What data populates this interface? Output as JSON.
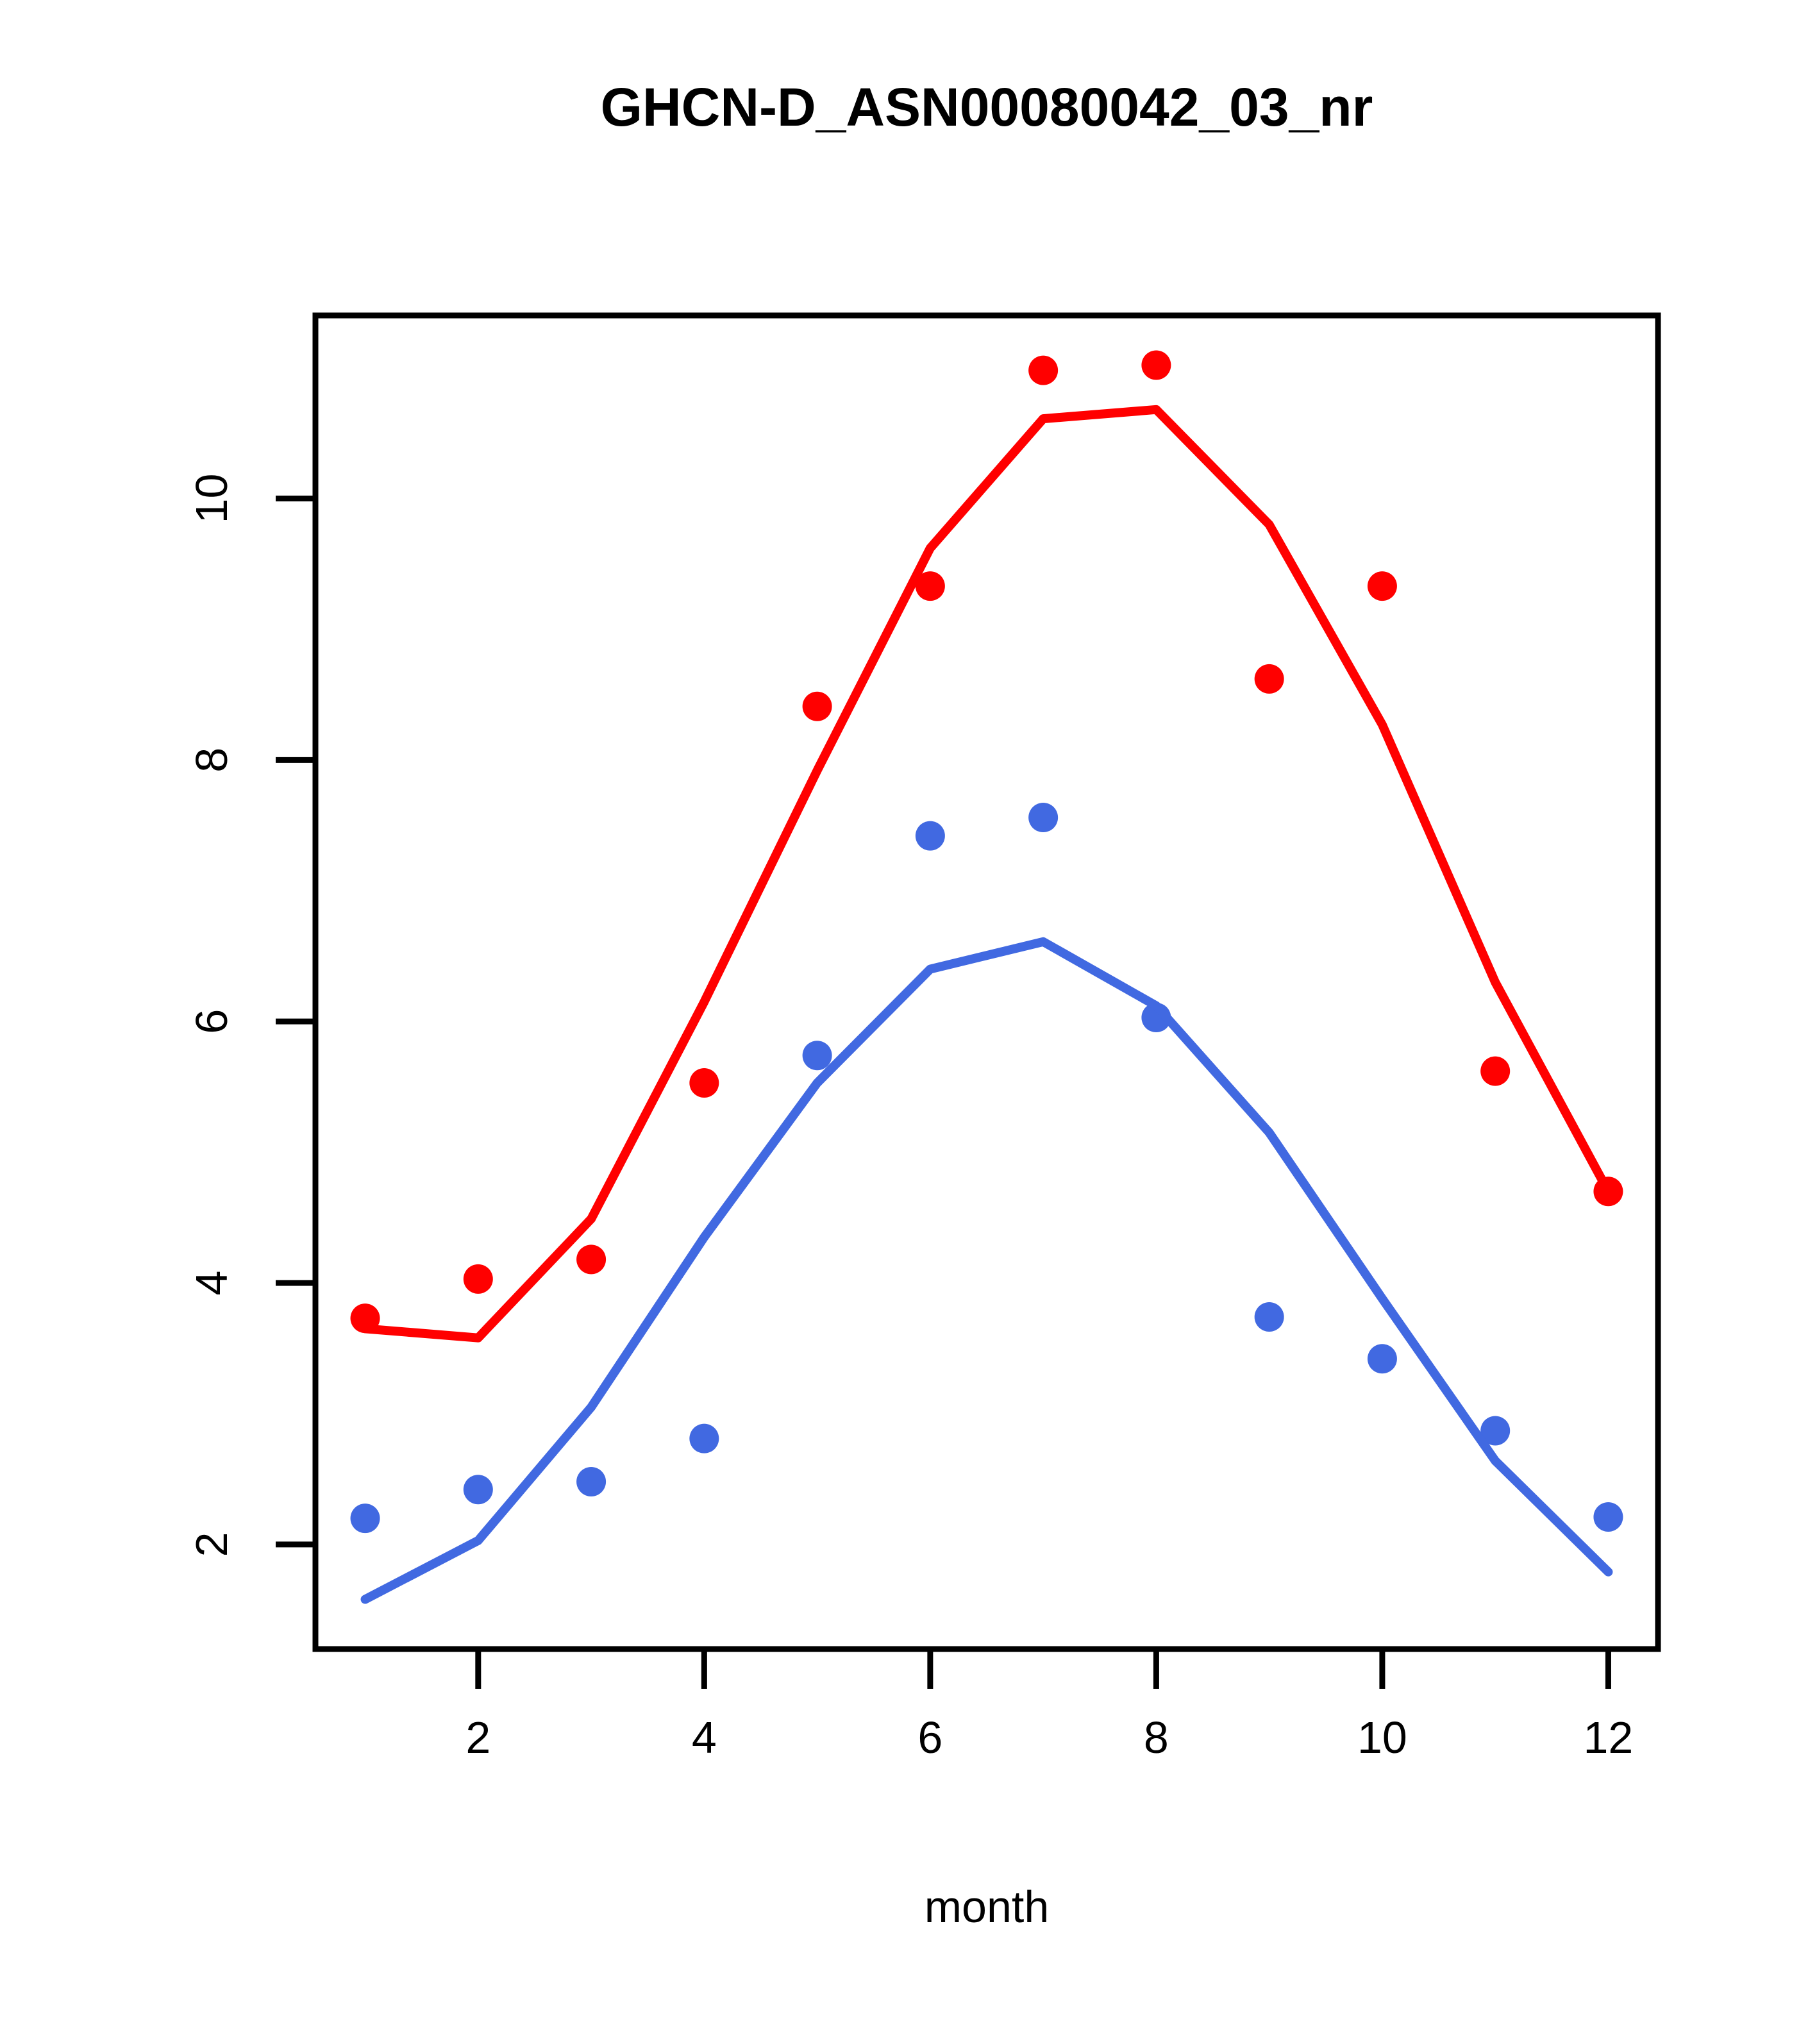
{
  "page": {
    "background": "#ffffff"
  },
  "chart_data": {
    "type": "scatter",
    "title": "GHCN-D_ASN00080042_03_nr",
    "xlabel": "month",
    "ylabel": "",
    "grid": false,
    "legend": null,
    "box": true,
    "axis_color": "#000000",
    "x": [
      1,
      2,
      3,
      4,
      5,
      6,
      7,
      8,
      9,
      10,
      11,
      12
    ],
    "xlim": [
      0.56,
      12.44
    ],
    "ylim": [
      1.2,
      11.4
    ],
    "x_ticks": [
      2,
      4,
      6,
      8,
      10,
      12
    ],
    "y_ticks": [
      2,
      4,
      6,
      8,
      10
    ],
    "series": [
      {
        "name": "red_scatter",
        "kind": "points",
        "marker": "filled-circle",
        "color": "#ff0000",
        "values": [
          3.73,
          4.03,
          4.18,
          5.53,
          8.41,
          9.33,
          10.98,
          11.02,
          8.62,
          9.33,
          5.62,
          4.7
        ]
      },
      {
        "name": "red_smooth_line",
        "kind": "line",
        "color": "#ff0000",
        "values": [
          3.65,
          3.58,
          4.49,
          6.15,
          7.92,
          9.62,
          10.61,
          10.68,
          9.8,
          8.27,
          6.3,
          4.7
        ]
      },
      {
        "name": "blue_scatter",
        "kind": "points",
        "marker": "filled-circle",
        "color": "#4169e1",
        "values": [
          2.2,
          2.42,
          2.48,
          2.81,
          5.74,
          7.42,
          7.56,
          6.03,
          3.74,
          3.42,
          2.87,
          2.21
        ]
      },
      {
        "name": "blue_smooth_line",
        "kind": "line",
        "color": "#4169e1",
        "values": [
          1.58,
          2.03,
          3.05,
          4.35,
          5.53,
          6.4,
          6.61,
          6.12,
          5.15,
          3.88,
          2.64,
          1.79
        ]
      }
    ]
  }
}
